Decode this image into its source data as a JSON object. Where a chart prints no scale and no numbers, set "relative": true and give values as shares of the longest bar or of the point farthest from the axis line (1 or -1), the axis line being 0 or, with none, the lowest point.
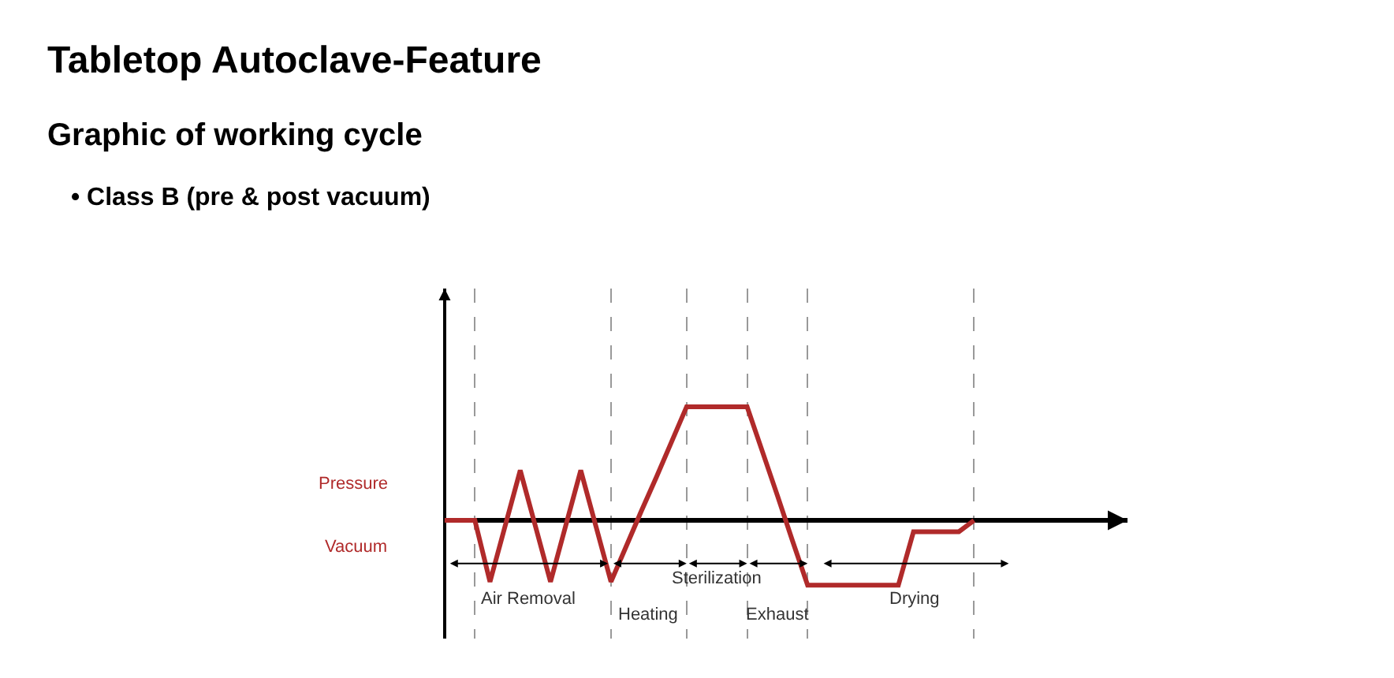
{
  "chart_data": {
    "type": "line",
    "relative": true,
    "title": "Tabletop Autoclave-Feature",
    "subtitle": "Graphic of working cycle",
    "annotations": [
      "• Class B (pre & post vacuum)",
      "Pressure",
      "Vacuum",
      "Air Removal",
      "Heating",
      "Sterilization",
      "Exhaust",
      "Drying"
    ],
    "categories": [
      null,
      null,
      null,
      null,
      null,
      null,
      null,
      null,
      null,
      null,
      null,
      null,
      null,
      null,
      null,
      null,
      null,
      null,
      null,
      null,
      null,
      null,
      null,
      null,
      null,
      null,
      null,
      null,
      null,
      null,
      null,
      null,
      null,
      null,
      null,
      null
    ],
    "line_style": "solid",
    "grid": "x",
    "series": [
      {
        "color": "#b02a2a",
        "values": [
          0,
          0,
          0,
          -0.54,
          -0.05,
          0.44,
          -0.05,
          -0.54,
          -0.05,
          0.44,
          -0.05,
          -0.54,
          -0.23,
          0.08,
          0.38,
          0.69,
          1,
          1,
          1,
          1,
          1,
          0.61,
          0.22,
          -0.18,
          -0.57,
          -0.57,
          -0.57,
          -0.57,
          -0.57,
          -0.57,
          -0.57,
          -0.1,
          -0.1,
          -0.1,
          -0.1,
          0
        ]
      }
    ]
  }
}
